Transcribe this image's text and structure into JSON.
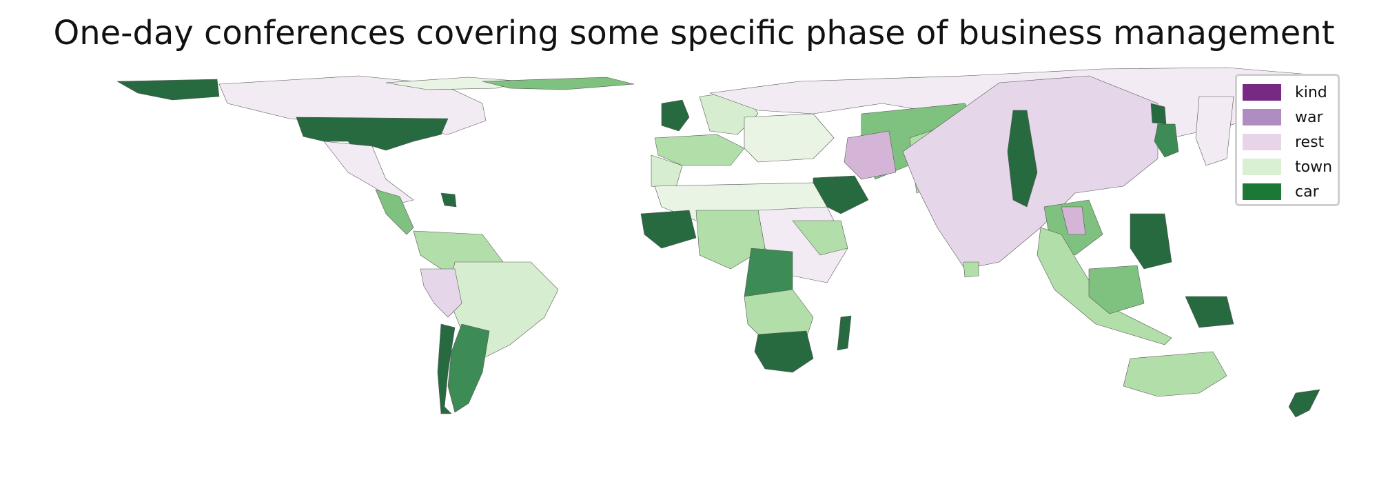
{
  "title": "One-day conferences covering some specific phase of business management",
  "legend": {
    "items": [
      {
        "label": "kind",
        "color": "#762a83"
      },
      {
        "label": "war",
        "color": "#af8dc3"
      },
      {
        "label": "rest",
        "color": "#e7d4e8"
      },
      {
        "label": "town",
        "color": "#d9f0d3"
      },
      {
        "label": "car",
        "color": "#1b7837"
      }
    ]
  },
  "palette": {
    "ocean": "#ffffff",
    "border": "#555555",
    "darkest_green": "#276a40",
    "dark_green": "#3d8b55",
    "mid_green": "#7fc17f",
    "light_green": "#b2dfa9",
    "pale_green": "#d6eecf",
    "faint_green": "#e9f4e5",
    "faint_purple": "#f2ebf3",
    "light_purple": "#e6d6e9",
    "mid_purple": "#d4b5d8"
  }
}
